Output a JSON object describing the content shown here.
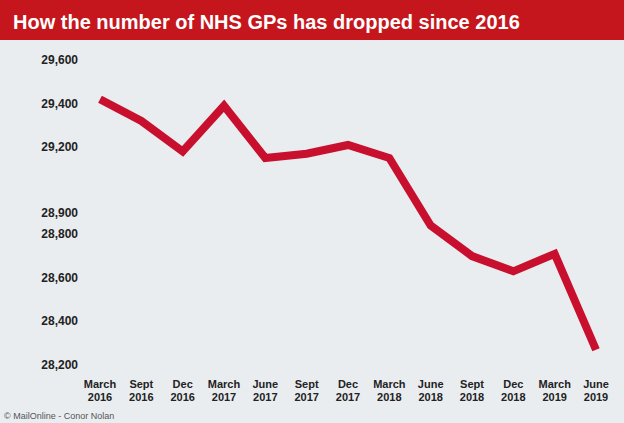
{
  "chart_data": {
    "type": "line",
    "title": "How the number of NHS GPs has dropped since 2016",
    "categories": [
      "March 2016",
      "Sept 2016",
      "Dec 2016",
      "March 2017",
      "June 2017",
      "Sept 2017",
      "Dec 2017",
      "March 2018",
      "June 2018",
      "Sept 2018",
      "Dec 2018",
      "March 2019",
      "June 2019"
    ],
    "values": [
      29420,
      29320,
      29180,
      29390,
      29150,
      29170,
      29210,
      29150,
      28840,
      28700,
      28630,
      28710,
      28270
    ],
    "color": "#c8102e",
    "ylim": [
      28200,
      29600
    ],
    "yticks": [
      {
        "value": 28200,
        "label": "28,200"
      },
      {
        "value": 28400,
        "label": "28,400"
      },
      {
        "value": 28600,
        "label": "28,600"
      },
      {
        "value": 28800,
        "label": "28,800"
      },
      {
        "value": 28900,
        "label": "28,900"
      },
      {
        "value": 29200,
        "label": "29,200"
      },
      {
        "value": 29400,
        "label": "29,400"
      },
      {
        "value": 29600,
        "label": "29,600"
      }
    ],
    "grid": false,
    "annotations": [
      "© MailOnline - Conor Nolan"
    ]
  }
}
